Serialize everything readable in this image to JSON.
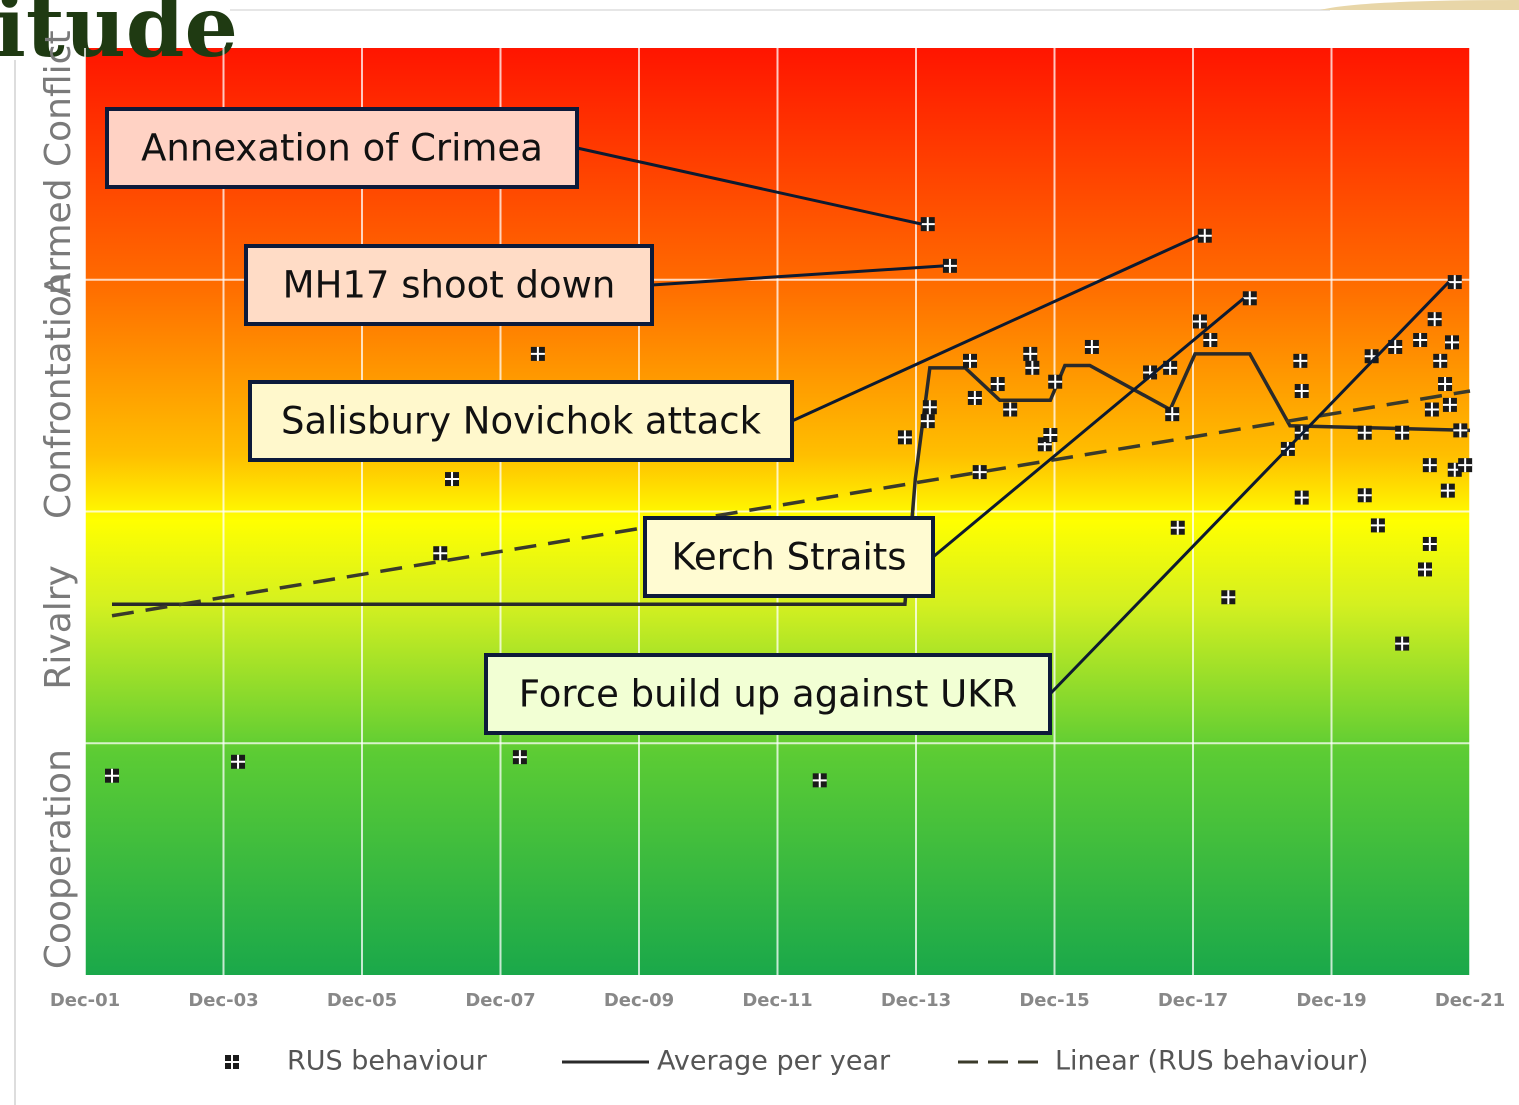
{
  "chart_data": {
    "type": "scatter",
    "title": "itude",
    "y_bands": [
      "Cooperation",
      "Rivalry",
      "Confrontation",
      "Armed Conflict"
    ],
    "xlim": [
      2001.92,
      2021.92
    ],
    "xticks": [
      {
        "value": 2001.92,
        "label": "Dec-01"
      },
      {
        "value": 2003.92,
        "label": "Dec-03"
      },
      {
        "value": 2005.92,
        "label": "Dec-05"
      },
      {
        "value": 2007.92,
        "label": "Dec-07"
      },
      {
        "value": 2009.92,
        "label": "Dec-09"
      },
      {
        "value": 2011.92,
        "label": "Dec-11"
      },
      {
        "value": 2013.92,
        "label": "Dec-13"
      },
      {
        "value": 2015.92,
        "label": "Dec-15"
      },
      {
        "value": 2017.92,
        "label": "Dec-17"
      },
      {
        "value": 2019.92,
        "label": "Dec-19"
      },
      {
        "value": 2021.92,
        "label": "Dec-21"
      }
    ],
    "ylim": [
      0,
      4
    ],
    "yticks": [
      1,
      2,
      3
    ],
    "grid": true,
    "legend": "bottom",
    "series": [
      {
        "name": "RUS behaviour",
        "type": "scatter",
        "color": "#1a1a1a",
        "x": [
          2002.31,
          2004.13,
          2008.2,
          2012.53,
          2007.05,
          2007.22,
          2008.46,
          2014.09,
          2014.41,
          2013.76,
          2014.09,
          2014.12,
          2014.7,
          2014.77,
          2015.1,
          2015.28,
          2015.57,
          2015.6,
          2015.93,
          2015.78,
          2015.86,
          2014.84,
          2016.46,
          2017.3,
          2017.59,
          2017.62,
          2017.7,
          2018.02,
          2018.09,
          2018.17,
          2018.74,
          2018.43,
          2019.29,
          2019.47,
          2019.49,
          2019.49,
          2019.49,
          2020.4,
          2020.4,
          2020.59,
          2020.5,
          2020.84,
          2020.94,
          2020.94,
          2021.27,
          2021.34,
          2021.2,
          2021.41,
          2021.49,
          2021.56,
          2021.7,
          2021.66,
          2021.37,
          2021.63,
          2021.7,
          2021.6,
          2021.85,
          2021.78,
          2021.34
        ],
        "values": [
          0.86,
          0.92,
          0.94,
          0.84,
          1.82,
          2.14,
          2.68,
          3.24,
          3.06,
          2.32,
          2.39,
          2.45,
          2.65,
          2.49,
          2.55,
          2.44,
          2.68,
          2.62,
          2.56,
          2.29,
          2.33,
          2.17,
          2.71,
          2.6,
          2.62,
          2.42,
          1.93,
          2.82,
          3.19,
          2.74,
          2.92,
          1.63,
          2.27,
          2.65,
          2.52,
          2.34,
          2.06,
          2.07,
          2.34,
          1.94,
          2.67,
          2.71,
          1.43,
          2.34,
          1.75,
          1.86,
          2.74,
          2.83,
          2.65,
          2.55,
          2.99,
          2.73,
          2.44,
          2.46,
          2.18,
          2.09,
          2.2,
          2.35,
          2.2
        ]
      },
      {
        "name": "Average per year",
        "type": "line",
        "color": "#2a2a2a",
        "x": [
          2002.31,
          2013.76,
          2013.91,
          2014.12,
          2014.63,
          2015.13,
          2015.86,
          2016.07,
          2016.43,
          2017.59,
          2017.95,
          2018.74,
          2019.32,
          2021.92
        ],
        "values": [
          1.6,
          1.6,
          2.14,
          2.62,
          2.62,
          2.48,
          2.48,
          2.63,
          2.63,
          2.44,
          2.68,
          2.68,
          2.37,
          2.35
        ]
      },
      {
        "name": "Linear (RUS behaviour)",
        "type": "line",
        "dash": true,
        "color": "#3a3a2a",
        "x": [
          2002.31,
          2021.92
        ],
        "values": [
          1.55,
          2.52
        ]
      }
    ],
    "annotations": [
      "Annexation of Crimea",
      "MH17 shoot down",
      "Salisbury Novichok attack",
      "Kerch Straits",
      "Force build up against UKR"
    ]
  }
}
